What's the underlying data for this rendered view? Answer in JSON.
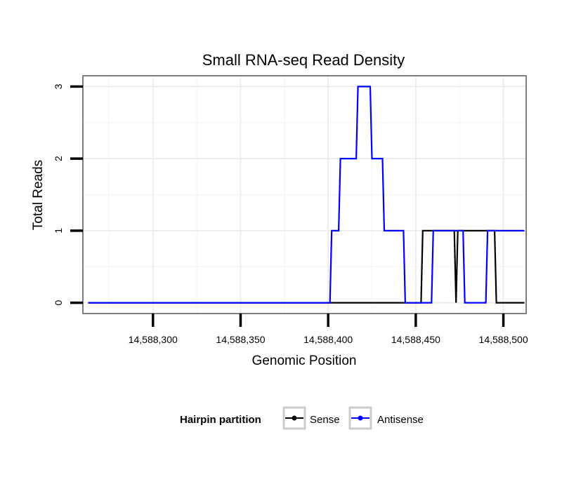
{
  "chart_data": {
    "type": "line",
    "title": "Small RNA-seq Read Density",
    "xlabel": "Genomic Position",
    "ylabel": "Total Reads",
    "xlim": [
      14588260,
      14588513
    ],
    "ylim": [
      -0.15,
      3.15
    ],
    "x_ticks": [
      14588300,
      14588350,
      14588400,
      14588450,
      14588500
    ],
    "x_tick_labels": [
      "14,588,300",
      "14,588,350",
      "14,588,400",
      "14,588,450",
      "14,588,500"
    ],
    "y_ticks": [
      0,
      1,
      2,
      3
    ],
    "y_tick_labels": [
      "0",
      "1",
      "2",
      "3"
    ],
    "grid": true,
    "legend": {
      "title": "Hairpin partition",
      "position": "bottom",
      "entries": [
        "Sense",
        "Antisense"
      ]
    },
    "series": [
      {
        "name": "Sense",
        "color": "#000000",
        "x": [
          14588263,
          14588453,
          14588454,
          14588472,
          14588473,
          14588474,
          14588495,
          14588496,
          14588512
        ],
        "y": [
          0,
          0,
          1,
          1,
          0,
          1,
          1,
          0,
          0
        ]
      },
      {
        "name": "Antisense",
        "color": "#0000ff",
        "x": [
          14588263,
          14588401,
          14588402,
          14588406,
          14588407,
          14588416,
          14588417,
          14588424,
          14588425,
          14588431,
          14588432,
          14588443,
          14588444,
          14588459,
          14588460,
          14588477,
          14588478,
          14588490,
          14588491,
          14588512
        ],
        "y": [
          0,
          0,
          1,
          1,
          2,
          2,
          3,
          3,
          2,
          2,
          1,
          1,
          0,
          0,
          1,
          1,
          0,
          0,
          1,
          1
        ]
      }
    ]
  }
}
